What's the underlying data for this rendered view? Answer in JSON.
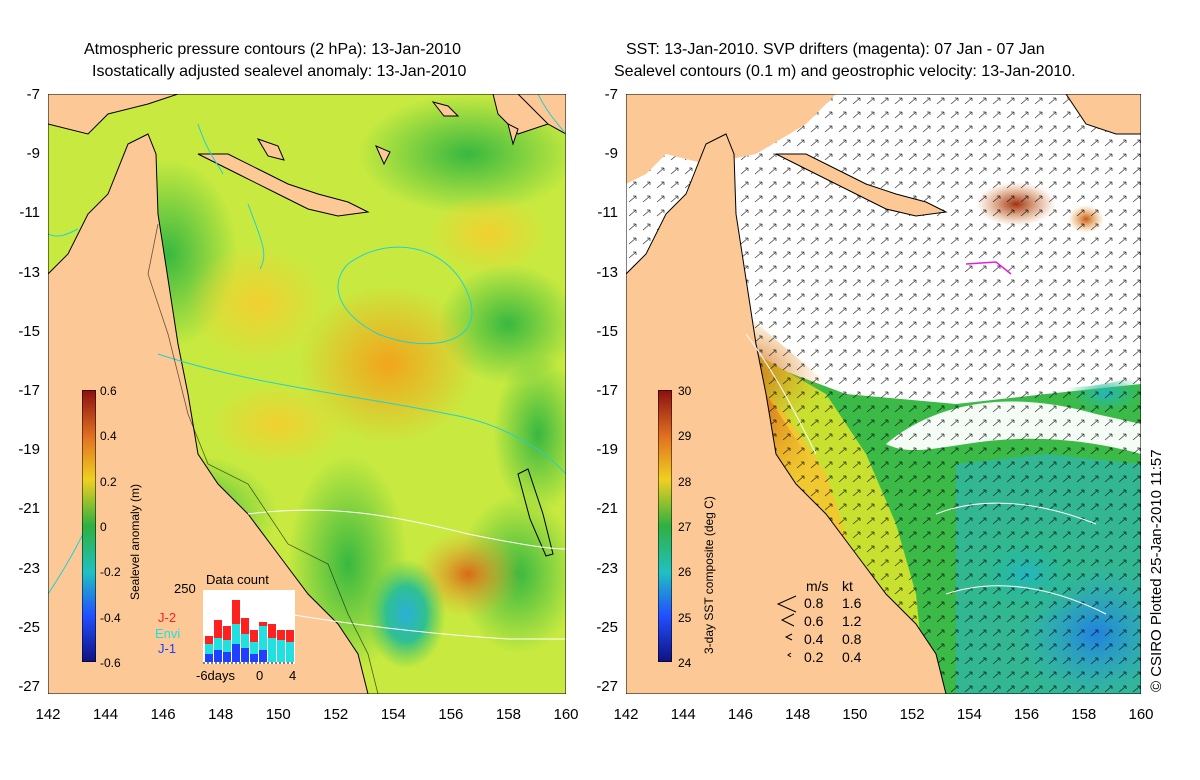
{
  "left_panel": {
    "title_line1": "Atmospheric pressure contours (2 hPa): 13-Jan-2010",
    "title_line2": "Isostatically adjusted sealevel anomaly: 13-Jan-2010",
    "colorbar": {
      "title": "Sealevel anomaly (m)",
      "ticks": [
        "0.6",
        "0.4",
        "0.2",
        "0",
        "-0.2",
        "-0.4",
        "-0.6"
      ]
    },
    "data_count": {
      "title": "Data count",
      "max_label": "250",
      "x_labels": [
        "-6days",
        "0",
        "4"
      ],
      "series": [
        {
          "name": "J-2",
          "color": "#ff2020"
        },
        {
          "name": "Envi",
          "color": "#22e0e0"
        },
        {
          "name": "J-1",
          "color": "#2040ff"
        }
      ]
    }
  },
  "right_panel": {
    "title_line1": "SST: 13-Jan-2010. SVP drifters (magenta): 07 Jan - 07 Jan",
    "title_line2": "Sealevel contours (0.1 m) and geostrophic velocity: 13-Jan-2010.",
    "colorbar": {
      "title": "3-day SST composite (deg C)",
      "ticks": [
        "30",
        "29",
        "28",
        "27",
        "26",
        "25",
        "24"
      ]
    },
    "velocity_legend": {
      "header_ms": "m/s",
      "header_kt": "kt",
      "rows": [
        {
          "ms": "0.8",
          "kt": "1.6"
        },
        {
          "ms": "0.6",
          "kt": "1.2"
        },
        {
          "ms": "0.4",
          "kt": "0.8"
        },
        {
          "ms": "0.2",
          "kt": "0.4"
        }
      ]
    }
  },
  "axes": {
    "lat_ticks": [
      "-7",
      "-9",
      "-11",
      "-13",
      "-15",
      "-17",
      "-19",
      "-21",
      "-23",
      "-25",
      "-27"
    ],
    "lon_ticks": [
      "142",
      "144",
      "146",
      "148",
      "150",
      "152",
      "154",
      "156",
      "158",
      "160"
    ]
  },
  "copyright": "© CSIRO Plotted 25-Jan-2010 11:57",
  "colors": {
    "land": "#fcc896",
    "ocean_left": "#c8ee3a",
    "ocean_right_white": "#ffffff"
  }
}
